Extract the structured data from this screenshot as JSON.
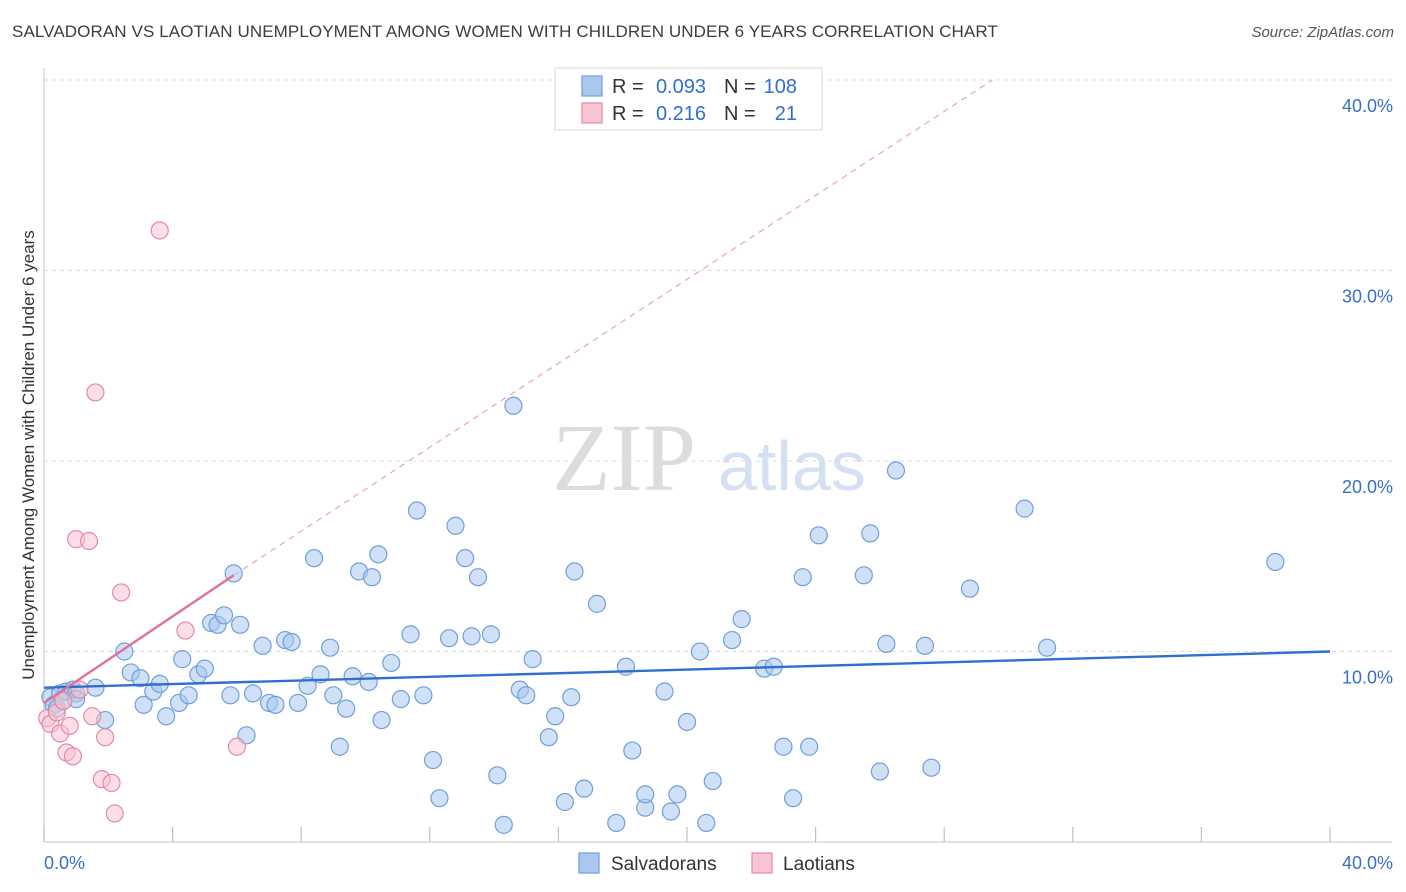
{
  "title": "SALVADORAN VS LAOTIAN UNEMPLOYMENT AMONG WOMEN WITH CHILDREN UNDER 6 YEARS CORRELATION CHART",
  "source": "Source: ZipAtlas.com",
  "watermark": {
    "zip": "ZIP",
    "atlas": "atlas"
  },
  "legend_top": [
    {
      "r_label": "R = ",
      "r_value": "0.093",
      "n_label": "N = ",
      "n_value": "108",
      "color": "#a9c8f0",
      "border": "#6f9fd8"
    },
    {
      "r_label": "R = ",
      "r_value": "0.216",
      "n_label": "N = ",
      "n_value": "21",
      "color": "#f8c3d2",
      "border": "#e58aa6"
    }
  ],
  "chart_data": {
    "type": "scatter",
    "title": "SALVADORAN VS LAOTIAN UNEMPLOYMENT AMONG WOMEN WITH CHILDREN UNDER 6 YEARS CORRELATION CHART",
    "xlabel": "",
    "ylabel": "Unemployment Among Women with Children Under 6 years",
    "xlim": [
      0,
      40
    ],
    "ylim": [
      0,
      40
    ],
    "x_tick_labels": [
      "0.0%",
      "40.0%"
    ],
    "y_ticks": [
      10,
      20,
      30,
      40
    ],
    "y_tick_labels": [
      "10.0%",
      "20.0%",
      "30.0%",
      "40.0%"
    ],
    "grid": true,
    "legend_placement": "bottom-center",
    "series": [
      {
        "name": "Salvadorans",
        "color": "#a9c8f0",
        "edge": "#6f9fd8",
        "trend": {
          "x": [
            0,
            40
          ],
          "y": [
            8.1,
            10.0
          ],
          "color": "#2f6fce"
        },
        "points": [
          [
            0.2,
            7.6
          ],
          [
            0.3,
            7.2
          ],
          [
            0.4,
            7.0
          ],
          [
            0.5,
            7.8
          ],
          [
            0.6,
            7.4
          ],
          [
            0.7,
            7.9
          ],
          [
            0.9,
            8.0
          ],
          [
            1.0,
            7.8
          ],
          [
            1.6,
            8.1
          ],
          [
            1.0,
            7.5
          ],
          [
            1.9,
            6.4
          ],
          [
            2.5,
            10.0
          ],
          [
            2.7,
            8.9
          ],
          [
            3.0,
            8.6
          ],
          [
            3.1,
            7.2
          ],
          [
            3.4,
            7.9
          ],
          [
            3.6,
            8.3
          ],
          [
            3.8,
            6.6
          ],
          [
            4.2,
            7.3
          ],
          [
            4.3,
            9.6
          ],
          [
            4.5,
            7.7
          ],
          [
            4.8,
            8.8
          ],
          [
            5.0,
            9.1
          ],
          [
            5.2,
            11.5
          ],
          [
            5.4,
            11.4
          ],
          [
            5.6,
            11.9
          ],
          [
            5.8,
            7.7
          ],
          [
            5.9,
            14.1
          ],
          [
            6.1,
            11.4
          ],
          [
            6.3,
            5.6
          ],
          [
            6.5,
            7.8
          ],
          [
            6.8,
            10.3
          ],
          [
            7.0,
            7.3
          ],
          [
            7.2,
            7.2
          ],
          [
            7.5,
            10.6
          ],
          [
            7.7,
            10.5
          ],
          [
            7.9,
            7.3
          ],
          [
            8.2,
            8.2
          ],
          [
            8.4,
            14.9
          ],
          [
            8.6,
            8.8
          ],
          [
            8.9,
            10.2
          ],
          [
            9.0,
            7.7
          ],
          [
            9.2,
            5.0
          ],
          [
            9.4,
            7.0
          ],
          [
            9.6,
            8.7
          ],
          [
            9.8,
            14.2
          ],
          [
            10.1,
            8.4
          ],
          [
            10.2,
            13.9
          ],
          [
            10.4,
            15.1
          ],
          [
            10.5,
            6.4
          ],
          [
            10.8,
            9.4
          ],
          [
            11.1,
            7.5
          ],
          [
            11.4,
            10.9
          ],
          [
            11.6,
            17.4
          ],
          [
            11.8,
            7.7
          ],
          [
            12.1,
            4.3
          ],
          [
            12.3,
            2.3
          ],
          [
            12.6,
            10.7
          ],
          [
            12.8,
            16.6
          ],
          [
            13.1,
            14.9
          ],
          [
            13.3,
            10.8
          ],
          [
            13.5,
            13.9
          ],
          [
            13.9,
            10.9
          ],
          [
            14.1,
            3.5
          ],
          [
            14.3,
            0.9
          ],
          [
            14.6,
            22.9
          ],
          [
            14.8,
            8.0
          ],
          [
            15.0,
            7.7
          ],
          [
            15.2,
            9.6
          ],
          [
            15.7,
            5.5
          ],
          [
            15.9,
            6.6
          ],
          [
            16.2,
            2.1
          ],
          [
            16.4,
            7.6
          ],
          [
            16.5,
            14.2
          ],
          [
            16.8,
            2.8
          ],
          [
            17.2,
            12.5
          ],
          [
            17.8,
            1.0
          ],
          [
            18.1,
            9.2
          ],
          [
            18.3,
            4.8
          ],
          [
            18.7,
            1.8
          ],
          [
            18.7,
            2.5
          ],
          [
            19.3,
            7.9
          ],
          [
            19.5,
            1.6
          ],
          [
            19.7,
            2.5
          ],
          [
            20.0,
            6.3
          ],
          [
            20.4,
            10.0
          ],
          [
            20.6,
            1.0
          ],
          [
            20.8,
            3.2
          ],
          [
            21.4,
            10.6
          ],
          [
            21.7,
            11.7
          ],
          [
            22.4,
            9.1
          ],
          [
            22.7,
            9.2
          ],
          [
            23.0,
            5.0
          ],
          [
            23.3,
            2.3
          ],
          [
            23.6,
            13.9
          ],
          [
            23.8,
            5.0
          ],
          [
            24.1,
            16.1
          ],
          [
            25.5,
            14.0
          ],
          [
            25.7,
            16.2
          ],
          [
            26.0,
            3.7
          ],
          [
            26.2,
            10.4
          ],
          [
            26.5,
            19.5
          ],
          [
            27.4,
            10.3
          ],
          [
            27.6,
            3.9
          ],
          [
            28.8,
            13.3
          ],
          [
            30.5,
            17.5
          ],
          [
            31.2,
            10.2
          ],
          [
            38.3,
            14.7
          ]
        ]
      },
      {
        "name": "Laotians",
        "color": "#f8c3d2",
        "edge": "#e58aa6",
        "trend": {
          "x": [
            0,
            5.9
          ],
          "y": [
            7.3,
            14.0
          ],
          "color": "#e0709a"
        },
        "trend_dashed": {
          "x": [
            5.9,
            29.5
          ],
          "y": [
            14.0,
            40.0
          ],
          "color": "#e8a3ba"
        },
        "points": [
          [
            0.1,
            6.5
          ],
          [
            0.2,
            6.2
          ],
          [
            0.4,
            6.8
          ],
          [
            0.5,
            5.7
          ],
          [
            0.6,
            7.4
          ],
          [
            0.7,
            4.7
          ],
          [
            0.8,
            6.1
          ],
          [
            0.9,
            4.5
          ],
          [
            1.0,
            15.9
          ],
          [
            1.1,
            8.0
          ],
          [
            1.4,
            15.8
          ],
          [
            1.5,
            6.6
          ],
          [
            1.6,
            23.6
          ],
          [
            1.8,
            3.3
          ],
          [
            1.9,
            5.5
          ],
          [
            2.1,
            3.1
          ],
          [
            2.2,
            1.5
          ],
          [
            2.4,
            13.1
          ],
          [
            3.6,
            32.1
          ],
          [
            4.4,
            11.1
          ],
          [
            6.0,
            5.0
          ]
        ]
      }
    ]
  },
  "bottom_legend": [
    {
      "label": "Salvadorans",
      "color": "#a9c8f0",
      "border": "#6f9fd8"
    },
    {
      "label": "Laotians",
      "color": "#f8c3d2",
      "border": "#e58aa6"
    }
  ]
}
